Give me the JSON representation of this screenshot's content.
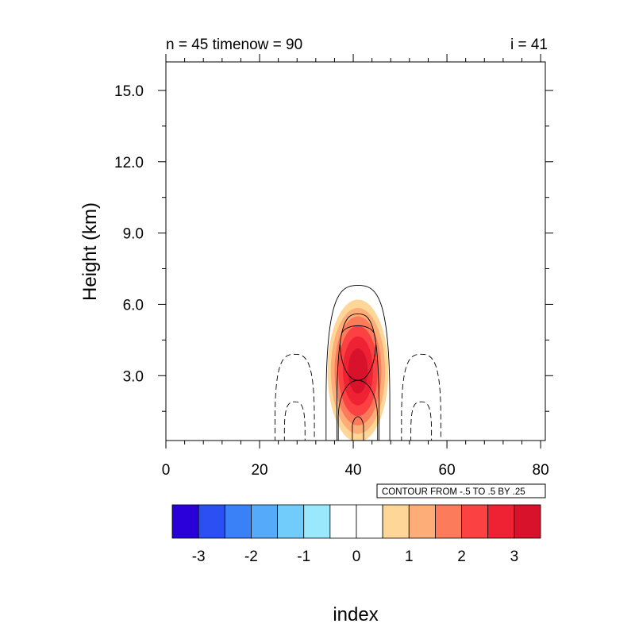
{
  "chart_data": {
    "type": "contour",
    "title_left": "n = 45 timenow = 90",
    "title_right": "i = 41",
    "xlabel": "index",
    "ylabel": "Height (km)",
    "xlim": [
      0,
      81
    ],
    "ylim": [
      0.27,
      16.2
    ],
    "x_ticks": [
      0,
      20,
      40,
      60,
      80
    ],
    "x_tick_labels": [
      "0",
      "20",
      "40",
      "60",
      "80"
    ],
    "y_ticks": [
      3,
      6,
      9,
      12,
      15
    ],
    "y_tick_labels": [
      "3.0",
      "6.0",
      "9.0",
      "12.0",
      "15.0"
    ],
    "contour_note": "CONTOUR FROM -.5 TO .5 BY .25",
    "filled_field": {
      "center_x": 41,
      "center_height_km": 3.2,
      "peak_value": 3.4,
      "levels": [
        0.5,
        1.0,
        1.5,
        2.0,
        2.5,
        3.0
      ],
      "colors": [
        "#fed698",
        "#fdae78",
        "#fc7b5a",
        "#fb4141",
        "#ef2234",
        "#d9122b"
      ],
      "ellipse_half_widths_index": [
        6.5,
        5.8,
        5.0,
        4.2,
        3.2,
        2.1
      ],
      "ellipse_half_heights_km": [
        3.0,
        2.65,
        2.3,
        1.9,
        1.45,
        0.95
      ]
    },
    "line_contours": {
      "positive_solid": [
        {
          "label": "0.25",
          "x_left": 34.2,
          "x_right": 47.8,
          "top_km": 6.8
        },
        {
          "label": "0.5",
          "x_left": 36.5,
          "x_right": 45.5,
          "top_km": 5.6
        }
      ],
      "negative_dashed": [
        {
          "label": "-0.25 left",
          "x_left": 23.3,
          "x_right": 31.7,
          "top_km": 3.9
        },
        {
          "label": "-0.25 right",
          "x_left": 50.3,
          "x_right": 58.7,
          "top_km": 3.9
        },
        {
          "label": "-0.5 left",
          "x_left": 25.3,
          "x_right": 29.7,
          "top_km": 1.9
        },
        {
          "label": "-0.5 right",
          "x_left": 52.3,
          "x_right": 56.7,
          "top_km": 1.9
        }
      ]
    },
    "colorbar": {
      "labels": [
        "-3",
        "-2",
        "-1",
        "0",
        "1",
        "2",
        "3"
      ],
      "colors": [
        "#2a00d8",
        "#2a50f4",
        "#3a80f7",
        "#56aafa",
        "#72ccfb",
        "#9ae8fc",
        "#ffffff",
        "#ffffff",
        "#fed698",
        "#fdae78",
        "#fc7b5a",
        "#fb4141",
        "#ef2234",
        "#d9122b"
      ]
    }
  }
}
